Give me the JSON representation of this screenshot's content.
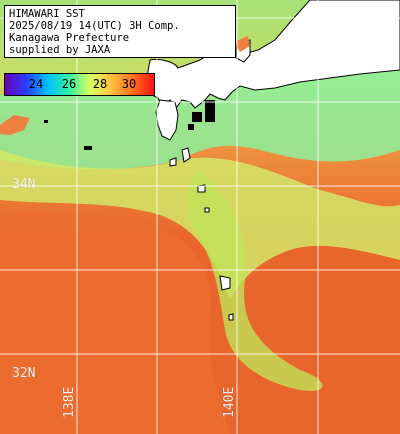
{
  "caption": {
    "line1": "HIMAWARI SST",
    "line2": "2025/08/19 14(UTC) 3H Comp.",
    "line3": "Kanagawa Prefecture",
    "line4": "supplied by JAXA"
  },
  "colorbar": {
    "labels": [
      "24",
      "26",
      "28",
      "30"
    ],
    "unit_range": [
      22,
      31
    ],
    "colors": [
      "#6a00b0",
      "#2a3cff",
      "#00c0ff",
      "#30f0a0",
      "#d8ff60",
      "#ffc040",
      "#ff7020",
      "#ff1010"
    ]
  },
  "grid": {
    "lat_labels": [
      "34N",
      "32N"
    ],
    "lon_labels": [
      "138E",
      "140E"
    ]
  },
  "colors": {
    "land": "#ffffff",
    "coastline": "#000000",
    "cloud_mask": "#000000",
    "grid": "#ffffff",
    "warm_sea": "#ea6a2d",
    "mid_sea": "#d8e870",
    "cool_sea": "#7cf0a8"
  }
}
